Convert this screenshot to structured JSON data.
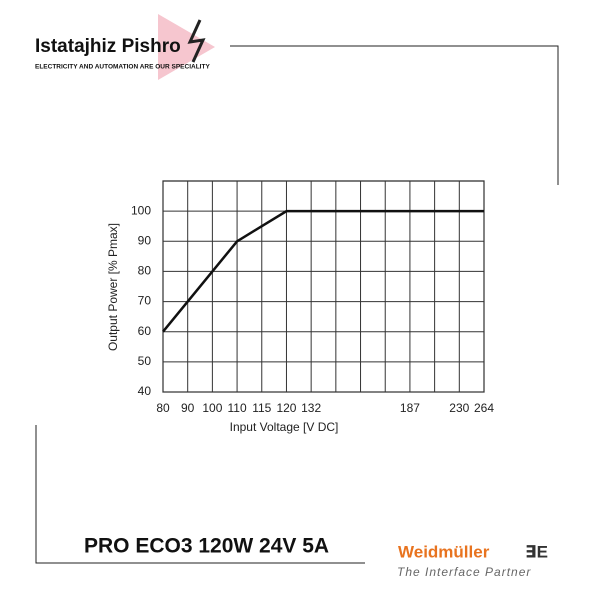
{
  "chart_data": {
    "type": "line",
    "categories": [
      80,
      90,
      100,
      110,
      115,
      120,
      132,
      null,
      null,
      null,
      187,
      null,
      230,
      264
    ],
    "values": [
      60,
      70,
      80,
      90,
      95,
      100,
      100,
      100,
      100,
      100,
      100,
      100,
      100,
      100
    ],
    "color": "#111111",
    "ylim": [
      40,
      110
    ],
    "yticks": [
      40,
      50,
      60,
      70,
      80,
      90,
      100
    ],
    "grid": true,
    "x_label": "Input Voltage [V DC]",
    "y_label": "Output Power [% Pmax]"
  },
  "branding": {
    "company": "Istatajhiz Pishro",
    "slogan": "ELECTRICITY AND AUTOMATION ARE OUR SPECIALITY",
    "product": "PRO ECO3 120W 24V 5A",
    "maker": "Weidmüller",
    "tagline": "The Interface Partner"
  }
}
